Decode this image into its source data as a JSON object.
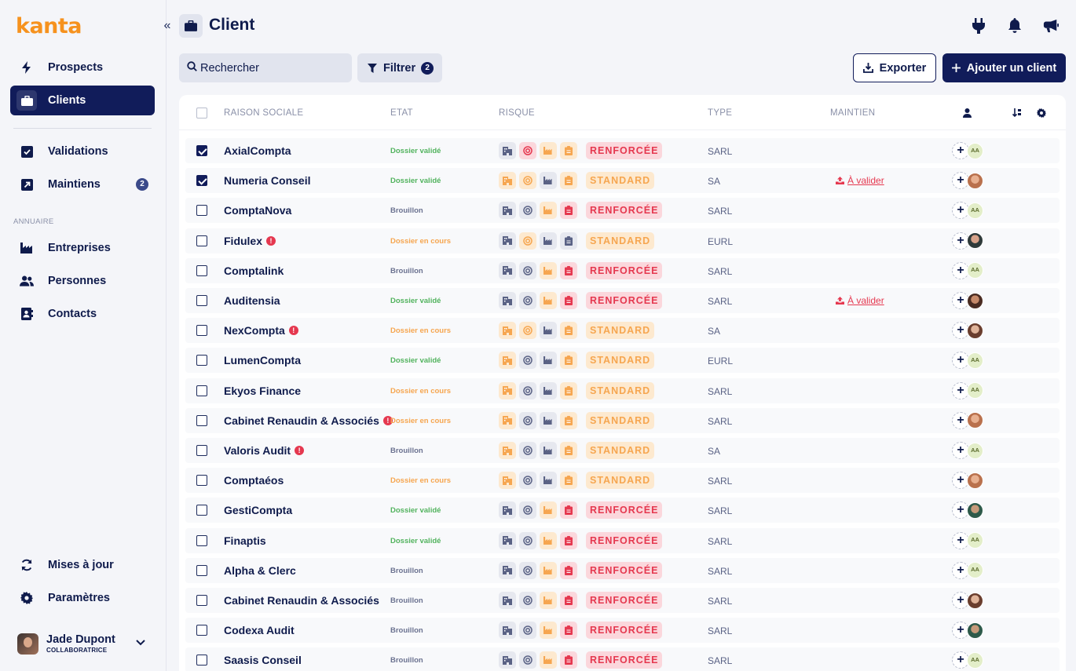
{
  "app": {
    "logo": "kanta"
  },
  "sidebar": {
    "collapse_glyph": "«",
    "items_top": [
      {
        "label": "Prospects",
        "icon": "bolt-icon"
      },
      {
        "label": "Clients",
        "icon": "briefcase-icon",
        "active": true
      }
    ],
    "items_mid": [
      {
        "label": "Validations",
        "icon": "check-square-icon"
      },
      {
        "label": "Maintiens",
        "icon": "arrow-up-right-icon",
        "badge": "2"
      }
    ],
    "section_label": "ANNUAIRE",
    "items_dir": [
      {
        "label": "Entreprises",
        "icon": "industry-icon"
      },
      {
        "label": "Personnes",
        "icon": "users-icon"
      },
      {
        "label": "Contacts",
        "icon": "address-book-icon"
      }
    ],
    "items_bottom": [
      {
        "label": "Mises à jour",
        "icon": "refresh-icon"
      },
      {
        "label": "Paramètres",
        "icon": "gear-icon"
      }
    ],
    "user": {
      "name": "Jade Dupont",
      "role": "COLLABORATRICE"
    }
  },
  "header": {
    "title": "Client"
  },
  "toolbar": {
    "search_placeholder": "Rechercher",
    "filter_label": "Filtrer",
    "filter_count": "2",
    "export_label": "Exporter",
    "add_label": "Ajouter un client"
  },
  "table": {
    "columns": {
      "name": "RAISON SOCIALE",
      "etat": "ETAT",
      "risque": "RISQUE",
      "type": "TYPE",
      "maintien": "MAINTIEN"
    },
    "rows": [
      {
        "name": "AxialCompta",
        "warn": false,
        "checked": true,
        "etat": "Dossier validé",
        "etat_kind": "valide",
        "risk_icons": [
          "g",
          "r",
          "o",
          "o"
        ],
        "level": "RENFORCÉE",
        "level_kind": "renf",
        "type": "SARL",
        "maintien": "",
        "avatar": "aa"
      },
      {
        "name": "Numeria Conseil",
        "warn": false,
        "checked": true,
        "etat": "Dossier validé",
        "etat_kind": "valide",
        "risk_icons": [
          "o",
          "o",
          "g",
          "o"
        ],
        "level": "STANDARD",
        "level_kind": "std",
        "type": "SA",
        "maintien": "À valider",
        "avatar": "p1"
      },
      {
        "name": "ComptaNova",
        "warn": false,
        "checked": false,
        "etat": "Brouillon",
        "etat_kind": "brouillon",
        "risk_icons": [
          "g",
          "g",
          "o",
          "r"
        ],
        "level": "RENFORCÉE",
        "level_kind": "renf",
        "type": "SARL",
        "maintien": "",
        "avatar": "aa"
      },
      {
        "name": "Fidulex",
        "warn": true,
        "checked": false,
        "etat": "Dossier en cours",
        "etat_kind": "cours",
        "risk_icons": [
          "g",
          "o",
          "g",
          "g"
        ],
        "level": "STANDARD",
        "level_kind": "std",
        "type": "EURL",
        "maintien": "",
        "avatar": "p2"
      },
      {
        "name": "Comptalink",
        "warn": false,
        "checked": false,
        "etat": "Brouillon",
        "etat_kind": "brouillon",
        "risk_icons": [
          "g",
          "g",
          "o",
          "r"
        ],
        "level": "RENFORCÉE",
        "level_kind": "renf",
        "type": "SARL",
        "maintien": "",
        "avatar": "aa"
      },
      {
        "name": "Auditensia",
        "warn": false,
        "checked": false,
        "etat": "Dossier validé",
        "etat_kind": "valide",
        "risk_icons": [
          "g",
          "g",
          "o",
          "r"
        ],
        "level": "RENFORCÉE",
        "level_kind": "renf",
        "type": "SARL",
        "maintien": "À valider",
        "avatar": "p3"
      },
      {
        "name": "NexCompta",
        "warn": true,
        "checked": false,
        "etat": "Dossier en cours",
        "etat_kind": "cours",
        "risk_icons": [
          "o",
          "o",
          "g",
          "o"
        ],
        "level": "STANDARD",
        "level_kind": "std",
        "type": "SA",
        "maintien": "",
        "avatar": "p4"
      },
      {
        "name": "LumenCompta",
        "warn": false,
        "checked": false,
        "etat": "Dossier validé",
        "etat_kind": "valide",
        "risk_icons": [
          "o",
          "g",
          "g",
          "o"
        ],
        "level": "STANDARD",
        "level_kind": "std",
        "type": "EURL",
        "maintien": "",
        "avatar": "aa"
      },
      {
        "name": "Ekyos Finance",
        "warn": false,
        "checked": false,
        "etat": "Dossier en cours",
        "etat_kind": "cours",
        "risk_icons": [
          "o",
          "g",
          "g",
          "o"
        ],
        "level": "STANDARD",
        "level_kind": "std",
        "type": "SARL",
        "maintien": "",
        "avatar": "aa"
      },
      {
        "name": "Cabinet Renaudin & Associés",
        "warn": true,
        "checked": false,
        "etat": "Dossier en cours",
        "etat_kind": "cours",
        "risk_icons": [
          "o",
          "g",
          "g",
          "o"
        ],
        "level": "STANDARD",
        "level_kind": "std",
        "type": "SARL",
        "maintien": "",
        "avatar": "p1"
      },
      {
        "name": "Valoris Audit",
        "warn": true,
        "checked": false,
        "etat": "Brouillon",
        "etat_kind": "brouillon",
        "risk_icons": [
          "o",
          "g",
          "g",
          "o"
        ],
        "level": "STANDARD",
        "level_kind": "std",
        "type": "SA",
        "maintien": "",
        "avatar": "aa"
      },
      {
        "name": "Comptaéos",
        "warn": false,
        "checked": false,
        "etat": "Dossier en cours",
        "etat_kind": "cours",
        "risk_icons": [
          "o",
          "g",
          "g",
          "o"
        ],
        "level": "STANDARD",
        "level_kind": "std",
        "type": "SARL",
        "maintien": "",
        "avatar": "p1"
      },
      {
        "name": "GestiCompta",
        "warn": false,
        "checked": false,
        "etat": "Dossier validé",
        "etat_kind": "valide",
        "risk_icons": [
          "g",
          "g",
          "o",
          "r"
        ],
        "level": "RENFORCÉE",
        "level_kind": "renf",
        "type": "SARL",
        "maintien": "",
        "avatar": "p5"
      },
      {
        "name": "Finaptis",
        "warn": false,
        "checked": false,
        "etat": "Dossier validé",
        "etat_kind": "valide",
        "risk_icons": [
          "g",
          "g",
          "o",
          "r"
        ],
        "level": "RENFORCÉE",
        "level_kind": "renf",
        "type": "SARL",
        "maintien": "",
        "avatar": "aa"
      },
      {
        "name": "Alpha & Clerc",
        "warn": false,
        "checked": false,
        "etat": "Brouillon",
        "etat_kind": "brouillon",
        "risk_icons": [
          "g",
          "g",
          "o",
          "r"
        ],
        "level": "RENFORCÉE",
        "level_kind": "renf",
        "type": "SARL",
        "maintien": "",
        "avatar": "aa"
      },
      {
        "name": "Cabinet Renaudin & Associés",
        "warn": false,
        "checked": false,
        "etat": "Brouillon",
        "etat_kind": "brouillon",
        "risk_icons": [
          "g",
          "g",
          "o",
          "r"
        ],
        "level": "RENFORCÉE",
        "level_kind": "renf",
        "type": "SARL",
        "maintien": "",
        "avatar": "p4"
      },
      {
        "name": "Codexa Audit",
        "warn": false,
        "checked": false,
        "etat": "Brouillon",
        "etat_kind": "brouillon",
        "risk_icons": [
          "g",
          "g",
          "o",
          "r"
        ],
        "level": "RENFORCÉE",
        "level_kind": "renf",
        "type": "SARL",
        "maintien": "",
        "avatar": "p5"
      },
      {
        "name": "Saasis Conseil",
        "warn": false,
        "checked": false,
        "etat": "Brouillon",
        "etat_kind": "brouillon",
        "risk_icons": [
          "g",
          "g",
          "o",
          "r"
        ],
        "level": "RENFORCÉE",
        "level_kind": "renf",
        "type": "SARL",
        "maintien": "",
        "avatar": "aa"
      }
    ],
    "avatar_initials": "AA"
  },
  "colors": {
    "brand_orange": "#f6921e",
    "navy": "#111c5a",
    "red": "#e5384f",
    "green": "#52b35e",
    "amber": "#f6a650"
  }
}
